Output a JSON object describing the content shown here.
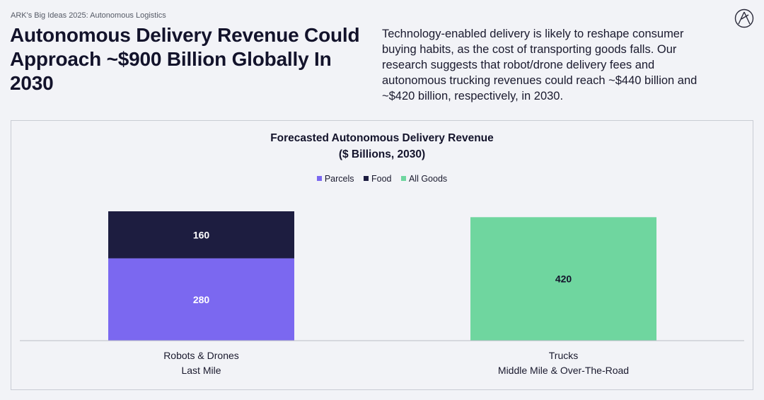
{
  "header": {
    "eyebrow": "ARK's Big Ideas 2025: Autonomous Logistics",
    "headline": "Autonomous Delivery Revenue Could Approach ~$900 Billion Globally In 2030",
    "description": "Technology-enabled delivery is likely to reshape consumer buying habits, as the cost of transporting goods falls. Our research suggests that robot/drone delivery fees and autonomous trucking revenues could reach ~$440 billion and ~$420 billion, respectively, in 2030.",
    "logo_icon": "ark-logo-icon"
  },
  "chart_data": {
    "type": "bar",
    "stacked": true,
    "title": "Forecasted Autonomous Delivery Revenue",
    "subtitle": "($ Billions, 2030)",
    "legend_position": "top-center",
    "categories": [
      {
        "label": "Robots & Drones",
        "sublabel": "Last Mile"
      },
      {
        "label": "Trucks",
        "sublabel": "Middle Mile & Over-The-Road"
      }
    ],
    "series": [
      {
        "name": "Parcels",
        "color": "#7b68f0",
        "label_color": "#ffffff",
        "values": [
          280,
          0
        ]
      },
      {
        "name": "Food",
        "color": "#1d1d40",
        "label_color": "#ffffff",
        "values": [
          160,
          0
        ]
      },
      {
        "name": "All Goods",
        "color": "#6fd69f",
        "label_color": "#13132b",
        "values": [
          0,
          420
        ]
      }
    ],
    "ylim": [
      0,
      440
    ],
    "grid": false
  }
}
